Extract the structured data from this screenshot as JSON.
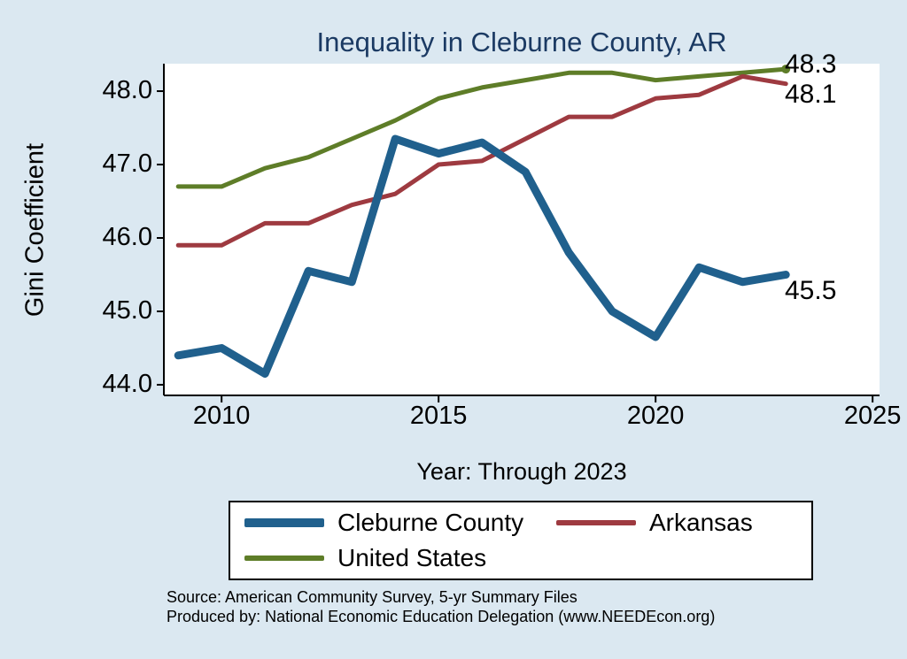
{
  "chart_data": {
    "type": "line",
    "title": "Inequality in Cleburne County, AR",
    "xlabel": "Year: Through 2023",
    "ylabel": "Gini Coefficient",
    "x": [
      2009,
      2010,
      2011,
      2012,
      2013,
      2014,
      2015,
      2016,
      2017,
      2018,
      2019,
      2020,
      2021,
      2022,
      2023
    ],
    "series": [
      {
        "name": "United States",
        "color": "#5e7d28",
        "stroke_width": 5,
        "end_label": "48.3",
        "end_dot": true,
        "values": [
          46.7,
          46.7,
          46.95,
          47.1,
          47.35,
          47.6,
          47.9,
          48.05,
          48.15,
          48.25,
          48.25,
          48.15,
          48.2,
          48.25,
          48.3
        ]
      },
      {
        "name": "Arkansas",
        "color": "#9e3a40",
        "stroke_width": 5,
        "end_label": "48.1",
        "end_dot": false,
        "values": [
          45.9,
          45.9,
          46.2,
          46.2,
          46.45,
          46.6,
          47.0,
          47.05,
          47.35,
          47.65,
          47.65,
          47.9,
          47.95,
          48.2,
          48.1
        ]
      },
      {
        "name": "Cleburne County",
        "color": "#20608d",
        "stroke_width": 9,
        "end_label": "45.5",
        "end_dot": false,
        "values": [
          44.4,
          44.5,
          44.15,
          45.55,
          45.4,
          47.35,
          47.15,
          47.3,
          46.9,
          45.8,
          45.0,
          44.65,
          45.6,
          45.4,
          45.5
        ]
      }
    ],
    "xticks": [
      2010,
      2015,
      2020,
      2025
    ],
    "xtick_labels": [
      "2010",
      "2015",
      "2020",
      "2025"
    ],
    "yticks": [
      44.0,
      45.0,
      46.0,
      47.0,
      48.0
    ],
    "ytick_labels": [
      "44.0",
      "45.0",
      "46.0",
      "47.0",
      "48.0"
    ],
    "xlim": [
      2008.67,
      2025.16
    ],
    "ylim": [
      43.855,
      48.374
    ],
    "grid": false,
    "legend_position": "bottom",
    "plot_bg": "#ffffff",
    "page_bg": "#dbe8f1",
    "title_color": "#1b3a63"
  },
  "legend": {
    "cleburne": "Cleburne County",
    "arkansas": "Arkansas",
    "us": "United States"
  },
  "annotations": {
    "us_end": "48.3",
    "arkansas_end": "48.1",
    "cleburne_end": "45.5"
  },
  "source": {
    "line1": "Source: American Community Survey, 5-yr Summary Files",
    "line2": "Produced by: National Economic Education Delegation (www.NEEDEcon.org)"
  }
}
